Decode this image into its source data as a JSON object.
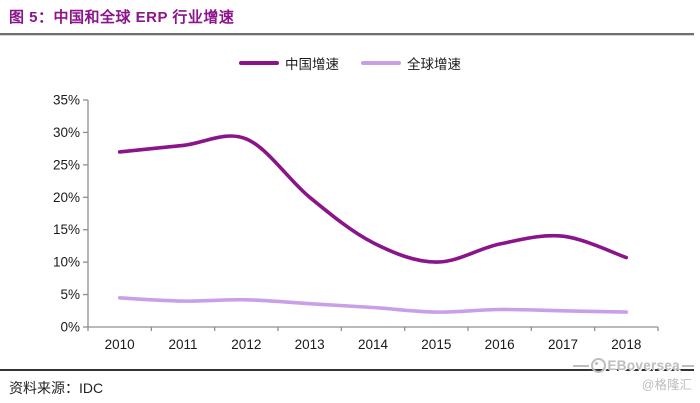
{
  "figure": {
    "title": "图 5：中国和全球 ERP 行业增速"
  },
  "chart_data": {
    "type": "line",
    "x": [
      "2010",
      "2011",
      "2012",
      "2013",
      "2014",
      "2015",
      "2016",
      "2017",
      "2018"
    ],
    "series": [
      {
        "name": "中国增速",
        "color": "#8a148a",
        "values": [
          27,
          28,
          29,
          20,
          13,
          10,
          12.8,
          14,
          10.7
        ]
      },
      {
        "name": "全球增速",
        "color": "#c9a0e8",
        "values": [
          4.5,
          4.0,
          4.2,
          3.6,
          3.0,
          2.3,
          2.7,
          2.5,
          2.3
        ]
      }
    ],
    "ylim": [
      0,
      35
    ],
    "yticks": [
      {
        "v": 0,
        "label": "0%"
      },
      {
        "v": 5,
        "label": "5%"
      },
      {
        "v": 10,
        "label": "10%"
      },
      {
        "v": 15,
        "label": "15%"
      },
      {
        "v": 20,
        "label": "20%"
      },
      {
        "v": 25,
        "label": "25%"
      },
      {
        "v": 30,
        "label": "30%"
      },
      {
        "v": 35,
        "label": "35%"
      }
    ],
    "grid": false,
    "legend_position": "top-center",
    "axis_color": "#8f8f8f",
    "smoothed_lines": true
  },
  "legend": {
    "items": [
      {
        "label": "中国增速"
      },
      {
        "label": "全球增速"
      }
    ]
  },
  "footer": {
    "source_label": "资料来源：",
    "source_value": "IDC"
  },
  "watermark": {
    "brand": "EBoversea",
    "handle": "@格隆汇",
    "color": "#bdbdbd"
  },
  "colors": {
    "title": "#8c148c",
    "china_line": "#8a148a",
    "global_line": "#c9a0e8",
    "axis": "#8f8f8f",
    "top_rule": "#6f6f6f",
    "bottom_rule": "#333333"
  }
}
